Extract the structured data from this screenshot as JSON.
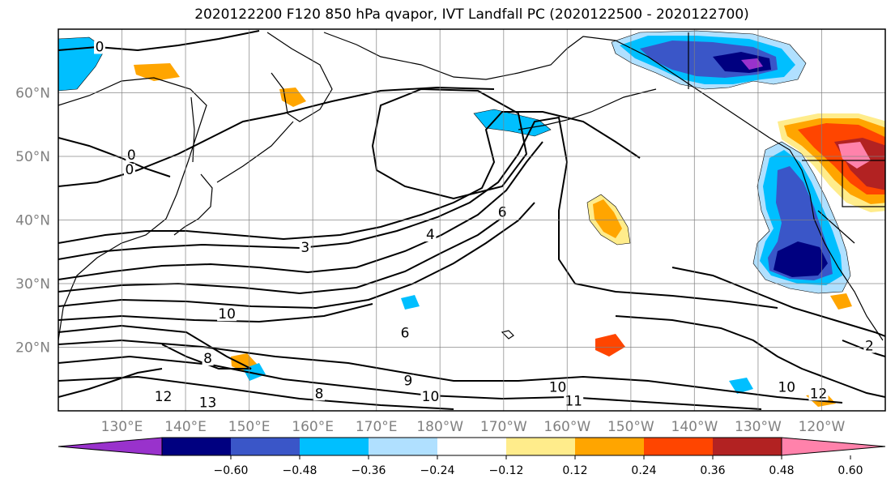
{
  "figure": {
    "title": "2020122200 F120 850 hPa qvapor, IVT Landfall PC (2020122500 - 2020122700)"
  },
  "map": {
    "lon_ticks": [
      "130°E",
      "140°E",
      "150°E",
      "160°E",
      "170°E",
      "180°W",
      "170°W",
      "160°W",
      "150°W",
      "140°W",
      "130°W",
      "120°W"
    ],
    "lat_ticks": [
      "60°N",
      "50°N",
      "40°N",
      "30°N",
      "20°N"
    ],
    "lon_range": [
      120,
      250
    ],
    "lat_range": [
      10,
      70
    ],
    "gridlines": true,
    "contour_labels": [
      {
        "text": "0",
        "lon": 126.5,
        "lat": 66.5
      },
      {
        "text": "0",
        "lon": 131.5,
        "lat": 49.5
      },
      {
        "text": "0",
        "lon": 131.2,
        "lat": 47.2
      },
      {
        "text": "3",
        "lon": 158.8,
        "lat": 35.0
      },
      {
        "text": "4",
        "lon": 178.5,
        "lat": 37.0
      },
      {
        "text": "6",
        "lon": 189.8,
        "lat": 40.5
      },
      {
        "text": "10",
        "lon": 146.5,
        "lat": 24.5
      },
      {
        "text": "8",
        "lon": 143.5,
        "lat": 17.5
      },
      {
        "text": "6",
        "lon": 174.5,
        "lat": 21.5
      },
      {
        "text": "9",
        "lon": 175.0,
        "lat": 14.0
      },
      {
        "text": "8",
        "lon": 161.0,
        "lat": 12.0
      },
      {
        "text": "10",
        "lon": 178.5,
        "lat": 11.5
      },
      {
        "text": "10",
        "lon": 198.5,
        "lat": 13.0
      },
      {
        "text": "11",
        "lon": 201.0,
        "lat": 10.8
      },
      {
        "text": "12",
        "lon": 239.5,
        "lat": 12.0
      },
      {
        "text": "10",
        "lon": 234.5,
        "lat": 13.0
      },
      {
        "text": "2",
        "lon": 247.5,
        "lat": 19.5
      },
      {
        "text": "12",
        "lon": 136.5,
        "lat": 11.5
      },
      {
        "text": "13",
        "lon": 143.5,
        "lat": 10.6
      }
    ]
  },
  "colorbar": {
    "ticks": [
      "−0.60",
      "−0.48",
      "−0.36",
      "−0.24",
      "−0.12",
      "0.12",
      "0.24",
      "0.36",
      "0.48",
      "0.60"
    ],
    "colors": [
      "#9932cc",
      "#000080",
      "#3a56c8",
      "#00bfff",
      "#b0e0ff",
      "#ffffff",
      "#ffec8b",
      "#ffa500",
      "#ff4500",
      "#b22222",
      "#ff82ab"
    ],
    "extend": "both",
    "orientation": "horizontal",
    "placement": "bottom"
  }
}
